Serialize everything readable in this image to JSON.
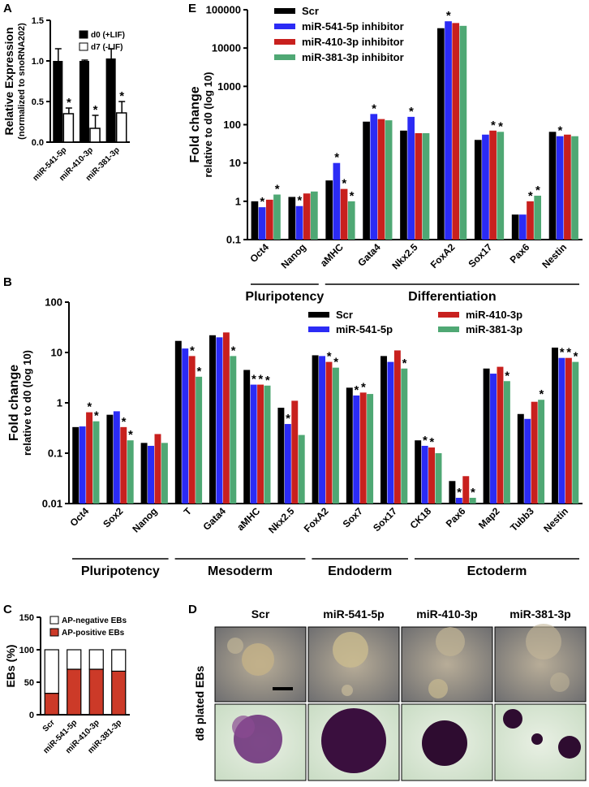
{
  "chart_data": [
    {
      "type": "bar",
      "panel": "A",
      "log_scale": false,
      "y_label": [
        "Relative Expression",
        "(normalized to snoRNA202)"
      ],
      "categories": [
        "miR-541-5p",
        "miR-410-3p",
        "miR-381-3p"
      ],
      "ylim": [
        0,
        1.5
      ],
      "yticks": [
        {
          "value": 0,
          "label": "0.0"
        },
        {
          "value": 0.5,
          "label": "0.5"
        },
        {
          "value": 1,
          "label": "1.0"
        },
        {
          "value": 1.5,
          "label": "1.5"
        }
      ],
      "series": [
        {
          "name": "d0 (+LIF)",
          "color": "#000000",
          "values": [
            1.0,
            1.0,
            1.03
          ],
          "errors": [
            0.15,
            0.01,
            0.12
          ],
          "significance": [
            null,
            null,
            null
          ]
        },
        {
          "name": "d7 (-LIF)",
          "color": "#ffffff",
          "values": [
            0.35,
            0.17,
            0.36
          ],
          "errors": [
            0.07,
            0.16,
            0.14
          ],
          "significance": [
            "*",
            "*",
            "*"
          ]
        }
      ]
    },
    {
      "type": "bar",
      "panel": "E",
      "log_scale": true,
      "y_label": [
        "Fold change",
        "relative to d0 (log 10)"
      ],
      "categories": [
        "Oct4",
        "Nanog",
        "aMHC",
        "Gata4",
        "Nkx2.5",
        "FoxA2",
        "Sox17",
        "Pax6",
        "Nestin"
      ],
      "ylim": [
        0.1,
        100000
      ],
      "yticks": [
        0.1,
        1,
        10,
        100,
        1000,
        10000,
        100000
      ],
      "groups": [
        {
          "label": "Pluripotency",
          "categories": [
            "Oct4",
            "Nanog"
          ]
        },
        {
          "label": "Differentiation",
          "categories": [
            "aMHC",
            "Nestin"
          ]
        }
      ],
      "series": [
        {
          "name": "Scr",
          "color": "#000000",
          "values": [
            1.0,
            1.3,
            3.5,
            120,
            70,
            33000,
            40,
            0.45,
            65
          ],
          "significance": [
            null,
            null,
            null,
            null,
            null,
            null,
            null,
            null,
            null
          ]
        },
        {
          "name": "miR-541-5p inhibitor",
          "color": "#2b2bf5",
          "values": [
            0.7,
            0.75,
            10,
            190,
            160,
            50000,
            55,
            0.45,
            50
          ],
          "significance": [
            "*",
            "*",
            "*",
            "*",
            "*",
            "*",
            null,
            null,
            "*"
          ]
        },
        {
          "name": "miR-410-3p inhibitor",
          "color": "#c8201e",
          "values": [
            1.1,
            1.6,
            2.1,
            140,
            60,
            45000,
            70,
            1.0,
            55
          ],
          "significance": [
            null,
            null,
            "*",
            null,
            null,
            null,
            "*",
            "*",
            null
          ]
        },
        {
          "name": "miR-381-3p inhibitor",
          "color": "#4fa874",
          "values": [
            1.5,
            1.8,
            1.0,
            130,
            60,
            38000,
            65,
            1.4,
            50
          ],
          "significance": [
            "*",
            null,
            "*",
            null,
            null,
            null,
            "*",
            "*",
            null
          ]
        }
      ]
    },
    {
      "type": "bar",
      "panel": "B",
      "log_scale": true,
      "y_label": [
        "Fold change",
        "relative to d0 (log 10)"
      ],
      "categories": [
        "Oct4",
        "Sox2",
        "Nanog",
        "T",
        "Gata4",
        "aMHC",
        "Nkx2.5",
        "FoxA2",
        "Sox7",
        "Sox17",
        "CK18",
        "Pax6",
        "Map2",
        "Tubb3",
        "Nestin"
      ],
      "ylim": [
        0.01,
        100
      ],
      "yticks": [
        0.01,
        0.1,
        1,
        10,
        100
      ],
      "groups": [
        {
          "label": "Pluripotency",
          "categories": [
            "Oct4",
            "Nanog"
          ]
        },
        {
          "label": "Mesoderm",
          "categories": [
            "T",
            "Nkx2.5"
          ]
        },
        {
          "label": "Endoderm",
          "categories": [
            "FoxA2",
            "Sox17"
          ]
        },
        {
          "label": "Ectoderm",
          "categories": [
            "CK18",
            "Nestin"
          ]
        }
      ],
      "series": [
        {
          "name": "Scr",
          "color": "#000000",
          "values": [
            0.33,
            0.58,
            0.16,
            17,
            22,
            4.5,
            0.8,
            8.8,
            2.0,
            8.5,
            0.18,
            0.028,
            4.8,
            0.6,
            12.5
          ],
          "significance": [
            null,
            null,
            null,
            null,
            null,
            null,
            null,
            null,
            null,
            null,
            null,
            null,
            null,
            null,
            null
          ]
        },
        {
          "name": "miR-541-5p",
          "color": "#2b2bf5",
          "values": [
            0.34,
            0.68,
            0.14,
            12,
            20,
            2.3,
            0.38,
            8.5,
            1.4,
            6.5,
            0.14,
            0.013,
            3.8,
            0.48,
            7.8
          ],
          "significance": [
            null,
            null,
            null,
            null,
            null,
            "*",
            "*",
            null,
            "*",
            null,
            "*",
            "*",
            null,
            null,
            "*"
          ]
        },
        {
          "name": "miR-410-3p",
          "color": "#c8201e",
          "values": [
            0.65,
            0.33,
            0.24,
            8.5,
            25,
            2.3,
            1.1,
            6.5,
            1.6,
            11,
            0.13,
            0.035,
            5.2,
            1.05,
            7.8
          ],
          "significance": [
            "*",
            "*",
            null,
            "*",
            null,
            "*",
            null,
            "*",
            "*",
            null,
            "*",
            null,
            null,
            null,
            "*"
          ]
        },
        {
          "name": "miR-381-3p",
          "color": "#4fa874",
          "values": [
            0.43,
            0.18,
            0.16,
            3.3,
            8.5,
            2.2,
            0.23,
            5.0,
            1.5,
            4.8,
            0.1,
            0.013,
            2.7,
            1.15,
            6.5
          ],
          "significance": [
            "*",
            "*",
            null,
            "*",
            "*",
            "*",
            null,
            "*",
            null,
            "*",
            null,
            "*",
            "*",
            "*",
            "*"
          ]
        }
      ]
    },
    {
      "type": "stacked_bar",
      "panel": "C",
      "log_scale": false,
      "y_label": [
        "EBs (%)"
      ],
      "categories": [
        "Scr",
        "miR-541-5p",
        "miR-410-3p",
        "miR-381-3p"
      ],
      "ylim": [
        0,
        150
      ],
      "yticks": [
        0,
        50,
        100,
        150
      ],
      "series": [
        {
          "name": "AP-positive EBs",
          "color": "#cc3a28",
          "values": [
            33,
            70,
            70,
            67
          ]
        },
        {
          "name": "AP-negative EBs",
          "color": "#ffffff",
          "values": [
            67,
            30,
            30,
            33
          ]
        }
      ]
    }
  ],
  "panel_d": {
    "panel": "D",
    "row_label": "d8 plated EBs",
    "columns": [
      "Scr",
      "miR-541-5p",
      "miR-410-3p",
      "miR-381-3p"
    ]
  }
}
